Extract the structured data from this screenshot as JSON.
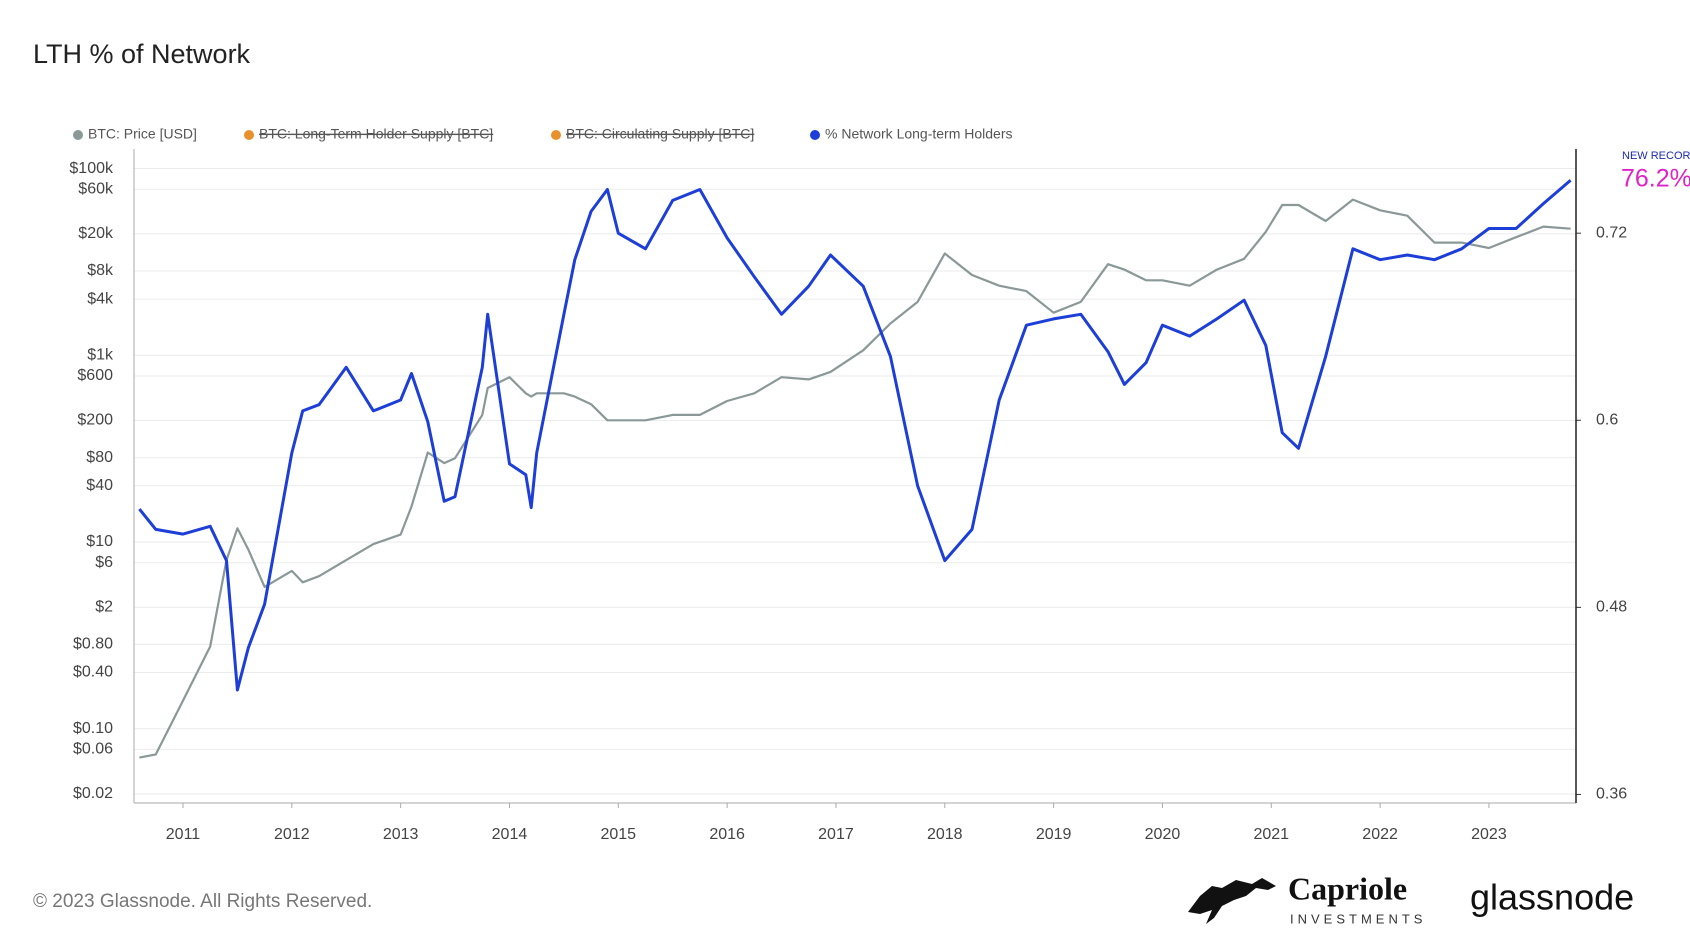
{
  "chart_data": {
    "type": "line",
    "title": "LTH % of Network",
    "x": [
      2010.6,
      2010.75,
      2011,
      2011.25,
      2011.4,
      2011.5,
      2011.6,
      2011.75,
      2012,
      2012.1,
      2012.25,
      2012.5,
      2012.75,
      2013,
      2013.1,
      2013.25,
      2013.4,
      2013.5,
      2013.75,
      2013.8,
      2014,
      2014.15,
      2014.2,
      2014.25,
      2014.5,
      2014.6,
      2014.75,
      2014.9,
      2015,
      2015.25,
      2015.5,
      2015.75,
      2016,
      2016.25,
      2016.5,
      2016.75,
      2016.95,
      2017.25,
      2017.5,
      2017.75,
      2018,
      2018.25,
      2018.5,
      2018.75,
      2019,
      2019.25,
      2019.5,
      2019.65,
      2019.85,
      2020,
      2020.25,
      2020.5,
      2020.75,
      2020.95,
      2021.1,
      2021.25,
      2021.5,
      2021.75,
      2022,
      2022.25,
      2022.5,
      2022.75,
      2023,
      2023.25,
      2023.5,
      2023.75
    ],
    "series": [
      {
        "name": "BTC: Price [USD]",
        "color": "#8a9898",
        "axis": "y",
        "values": [
          0.049,
          0.053,
          0.2,
          0.76,
          6.4,
          14,
          8.3,
          3.3,
          4.9,
          3.7,
          4.3,
          6.4,
          9.5,
          12,
          24,
          91,
          70,
          79,
          230,
          446,
          582,
          391,
          361,
          391,
          391,
          361,
          299,
          201,
          201,
          201,
          230,
          230,
          324,
          391,
          582,
          552,
          664,
          1130,
          2190,
          3730,
          12300,
          7250,
          5560,
          4870,
          2860,
          3730,
          9460,
          8280,
          6350,
          6350,
          5560,
          8280,
          10800,
          21000,
          40700,
          40700,
          27400,
          46500,
          35700,
          31300,
          16100,
          16100,
          14100,
          18400,
          23900,
          22700
        ]
      },
      {
        "name": "BTC: Long-Term Holder Supply [BTC]",
        "color": "#e8912c",
        "hidden": true
      },
      {
        "name": "BTC: Circulating Supply [BTC]",
        "color": "#e8912c",
        "hidden": true
      },
      {
        "name": "% Network Long-term Holders",
        "color": "#1d3fd8",
        "axis": "y2",
        "values": [
          0.543,
          0.53,
          0.527,
          0.532,
          0.51,
          0.427,
          0.454,
          0.482,
          0.579,
          0.606,
          0.61,
          0.634,
          0.606,
          0.613,
          0.63,
          0.599,
          0.548,
          0.551,
          0.634,
          0.668,
          0.572,
          0.565,
          0.544,
          0.579,
          0.668,
          0.703,
          0.734,
          0.748,
          0.72,
          0.71,
          0.741,
          0.748,
          0.717,
          0.692,
          0.668,
          0.686,
          0.706,
          0.686,
          0.641,
          0.558,
          0.51,
          0.53,
          0.613,
          0.661,
          0.665,
          0.668,
          0.644,
          0.623,
          0.637,
          0.661,
          0.654,
          0.665,
          0.677,
          0.648,
          0.592,
          0.582,
          0.641,
          0.71,
          0.703,
          0.706,
          0.703,
          0.71,
          0.723,
          0.723,
          0.739,
          0.754
        ]
      }
    ],
    "xlim": [
      2010.55,
      2023.8
    ],
    "xticks": [
      2011,
      2012,
      2013,
      2014,
      2015,
      2016,
      2017,
      2018,
      2019,
      2020,
      2021,
      2022,
      2023
    ],
    "ylim": [
      0.016,
      162000
    ],
    "ylog": true,
    "yticks": [
      {
        "value": 0.02,
        "label": "$0.02"
      },
      {
        "value": 0.06,
        "label": "$0.06"
      },
      {
        "value": 0.1,
        "label": "$0.10"
      },
      {
        "value": 0.4,
        "label": "$0.40"
      },
      {
        "value": 0.8,
        "label": "$0.80"
      },
      {
        "value": 2,
        "label": "$2"
      },
      {
        "value": 6,
        "label": "$6"
      },
      {
        "value": 10,
        "label": "$10"
      },
      {
        "value": 40,
        "label": "$40"
      },
      {
        "value": 80,
        "label": "$80"
      },
      {
        "value": 200,
        "label": "$200"
      },
      {
        "value": 600,
        "label": "$600"
      },
      {
        "value": 1000,
        "label": "$1k"
      },
      {
        "value": 4000,
        "label": "$4k"
      },
      {
        "value": 8000,
        "label": "$8k"
      },
      {
        "value": 20000,
        "label": "$20k"
      },
      {
        "value": 60000,
        "label": "$60k"
      },
      {
        "value": 100000,
        "label": "$100k"
      }
    ],
    "y2lim": [
      0.3545,
      0.774
    ],
    "y2ticks": [
      0.36,
      0.48,
      0.6,
      0.72
    ],
    "grid": true,
    "legend": "top-left",
    "annotations": [
      "NEW RECORD",
      "76.2%"
    ]
  },
  "footer": {
    "copyright": "© 2023 Glassnode. All Rights Reserved.",
    "brand": "Capriole",
    "brand_sub": "INVESTMENTS",
    "logo": "glassnode"
  }
}
